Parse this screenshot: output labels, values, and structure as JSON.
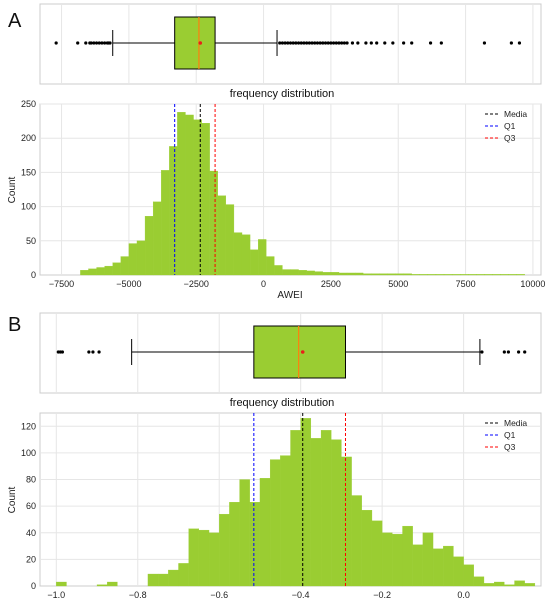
{
  "figure": {
    "panel_labels": [
      "A",
      "B"
    ]
  },
  "chart_data": [
    {
      "panel": "A",
      "type": "bar",
      "title": "frequency distribution",
      "xlabel": "AWEI",
      "ylabel": "Count",
      "xlim": [
        -8300,
        10300
      ],
      "ylim": [
        0,
        250
      ],
      "xticks": [
        -7500,
        -5000,
        -2500,
        0,
        2500,
        5000,
        7500,
        10000
      ],
      "xtick_labels": [
        "−7500",
        "−5000",
        "−2500",
        "0",
        "2500",
        "5000",
        "7500",
        "10000"
      ],
      "yticks": [
        0,
        50,
        100,
        150,
        200,
        250
      ],
      "grid": true,
      "bar_color": "#9acd32",
      "bin_start": -6800,
      "bin_width": 300,
      "values": [
        7,
        9,
        11,
        13,
        18,
        27,
        46,
        50,
        86,
        107,
        153,
        188,
        238,
        234,
        227,
        222,
        152,
        116,
        103,
        62,
        59,
        37,
        52,
        27,
        14,
        8,
        8,
        7,
        6,
        5,
        4,
        4,
        3,
        3,
        3,
        2,
        2,
        2,
        2,
        2,
        2,
        1,
        1,
        1,
        1,
        1,
        1,
        1,
        1,
        1,
        1,
        1,
        1,
        1,
        1
      ],
      "reference_lines": [
        {
          "name": "Media",
          "x": -2350,
          "color": "#000000"
        },
        {
          "name": "Q1",
          "x": -3300,
          "color": "#0000ff"
        },
        {
          "name": "Q3",
          "x": -1800,
          "color": "#ff0000"
        }
      ],
      "legend_position": "top-right",
      "boxplot": {
        "whisker_low": -5600,
        "q1": -3300,
        "median": -2400,
        "mean": -2350,
        "q3": -1800,
        "whisker_high": 500,
        "fliers": [
          -7700,
          -6900,
          -6600,
          -6450,
          -6400,
          -6300,
          -6200,
          -6100,
          -6000,
          -5900,
          -5800,
          -5750,
          -5700,
          600,
          700,
          800,
          900,
          1000,
          1100,
          1200,
          1300,
          1400,
          1500,
          1600,
          1700,
          1800,
          1900,
          2000,
          2100,
          2200,
          2300,
          2400,
          2500,
          2600,
          2700,
          2800,
          2900,
          3000,
          3100,
          3300,
          3500,
          3800,
          4000,
          4200,
          4500,
          4800,
          5200,
          5500,
          6200,
          6600,
          8200,
          9200,
          9500
        ]
      }
    },
    {
      "panel": "B",
      "type": "bar",
      "title": "frequency distribution",
      "xlabel": "",
      "ylabel": "Count",
      "xlim": [
        -1.04,
        0.19
      ],
      "ylim": [
        0,
        130
      ],
      "xticks": [
        -1.0,
        -0.8,
        -0.6,
        -0.4,
        -0.2,
        0.0
      ],
      "xtick_labels": [
        "−1.0",
        "−0.8",
        "−0.6",
        "−0.4",
        "−0.2",
        "0.0"
      ],
      "yticks": [
        0,
        20,
        40,
        60,
        80,
        100,
        120
      ],
      "grid": true,
      "bar_color": "#9acd32",
      "bin_start": -1.0,
      "bin_width": 0.025,
      "values": [
        3,
        0,
        0,
        0,
        1,
        3,
        0,
        0,
        0,
        9,
        9,
        12,
        17,
        43,
        42,
        40,
        54,
        63,
        80,
        63,
        81,
        95,
        98,
        117,
        126,
        111,
        117,
        110,
        97,
        68,
        57,
        49,
        40,
        39,
        45,
        31,
        40,
        28,
        30,
        22,
        16,
        7,
        2,
        3,
        1,
        4,
        2
      ],
      "reference_lines": [
        {
          "name": "Media",
          "x": -0.395,
          "color": "#000000"
        },
        {
          "name": "Q1",
          "x": -0.515,
          "color": "#0000ff"
        },
        {
          "name": "Q3",
          "x": -0.29,
          "color": "#ff0000"
        }
      ],
      "legend_position": "top-right",
      "boxplot": {
        "whisker_low": -0.815,
        "q1": -0.515,
        "median": -0.405,
        "mean": -0.395,
        "q3": -0.29,
        "whisker_high": 0.04,
        "fliers": [
          -0.995,
          -0.99,
          -0.985,
          -0.92,
          -0.91,
          -0.895,
          0.045,
          0.1,
          0.11,
          0.135,
          0.15
        ]
      }
    }
  ]
}
